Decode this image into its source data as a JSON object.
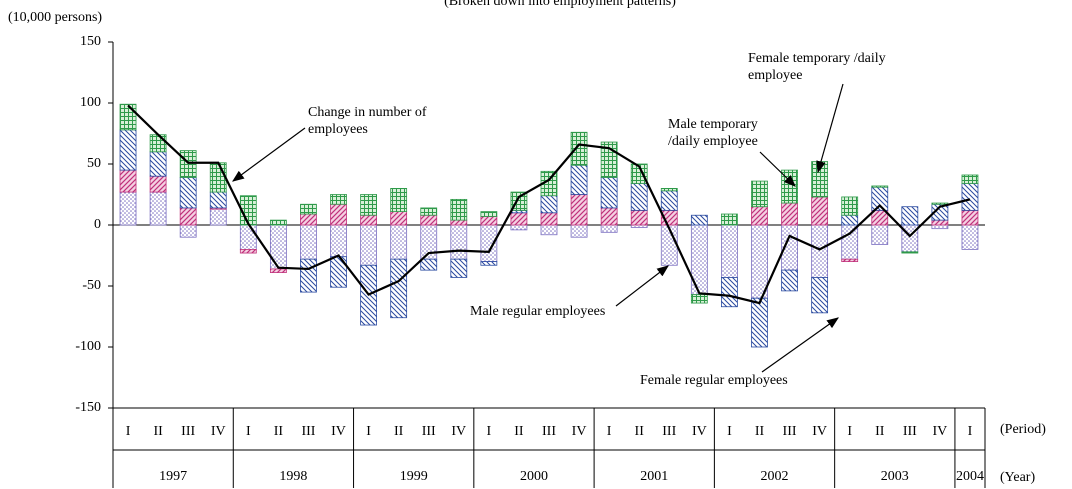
{
  "chart_data": {
    "type": "bar-line",
    "subtitle": "(Broken down into employment patterns)",
    "y_label": "(10,000 persons)",
    "period_label": "(Period)",
    "year_label": "(Year)",
    "categories": [
      "I",
      "II",
      "III",
      "IV",
      "I",
      "II",
      "III",
      "IV",
      "I",
      "II",
      "III",
      "IV",
      "I",
      "II",
      "III",
      "IV",
      "I",
      "II",
      "III",
      "IV",
      "I",
      "II",
      "III",
      "IV",
      "I",
      "II",
      "III",
      "IV",
      "I"
    ],
    "years": [
      "1997",
      "1998",
      "1999",
      "2000",
      "2001",
      "2002",
      "2003",
      "2004"
    ],
    "ylim": [
      -150,
      150
    ],
    "yticks": [
      -150,
      -100,
      -50,
      0,
      50,
      100,
      150
    ],
    "series": [
      {
        "name": "Male regular employees",
        "pattern": "dots",
        "color": "#7b6fc0",
        "values": [
          27,
          27,
          -10,
          13,
          -20,
          -36,
          -28,
          -26,
          -33,
          -28,
          -28,
          -28,
          -30,
          -4,
          -8,
          -10,
          -6,
          -2,
          -33,
          -57,
          -43,
          -60,
          -37,
          -43,
          -28,
          -16,
          -22,
          -3,
          -20
        ]
      },
      {
        "name": "Male temporary /daily employee",
        "pattern": "hatch-up",
        "color": "#c0307a",
        "values": [
          18,
          13,
          14,
          1,
          -3,
          -3,
          9,
          17,
          8,
          11,
          8,
          4,
          7,
          10,
          10,
          25,
          14,
          12,
          12,
          0,
          0,
          15,
          18,
          23,
          -2,
          12,
          0,
          4,
          12
        ]
      },
      {
        "name": "Female regular employees",
        "pattern": "hatch-down",
        "color": "#2a4aa0",
        "values": [
          33,
          20,
          25,
          13,
          0,
          0,
          -27,
          -25,
          -49,
          -48,
          -9,
          -15,
          -3,
          2,
          14,
          24,
          25,
          22,
          16,
          8,
          -24,
          -40,
          -17,
          -29,
          8,
          19,
          15,
          13,
          22
        ]
      },
      {
        "name": "Female temporary /daily employee",
        "pattern": "grid",
        "color": "#2f9a4a",
        "values": [
          21,
          14,
          22,
          24,
          24,
          4,
          8,
          8,
          17,
          19,
          6,
          17,
          4,
          15,
          20,
          27,
          29,
          16,
          2,
          -7,
          9,
          21,
          27,
          29,
          15,
          1,
          -1,
          1,
          7
        ]
      },
      {
        "name": "Change in number of employees",
        "kind": "line",
        "color": "#000000",
        "values": [
          98,
          74,
          51,
          51,
          1,
          -35,
          -36,
          -25,
          -57,
          -46,
          -23,
          -21,
          -22,
          23,
          37,
          66,
          63,
          48,
          -3,
          -56,
          -58,
          -64,
          -9,
          -20,
          -7,
          16,
          -9,
          15,
          21
        ]
      }
    ]
  }
}
